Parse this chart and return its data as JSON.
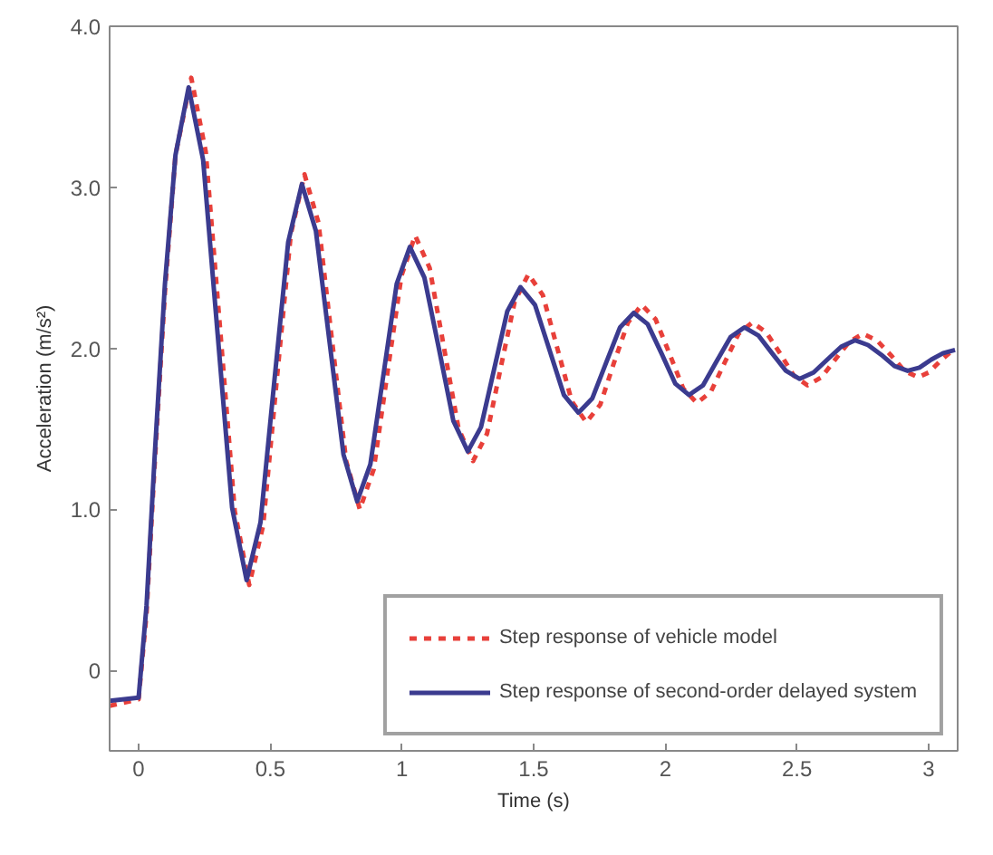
{
  "chart_data": {
    "type": "line",
    "xlabel": "Time (s)",
    "ylabel": "Acceleration (m/s²)",
    "xlim": [
      -0.11,
      3.11
    ],
    "ylim": [
      -0.5,
      4.0
    ],
    "xticks": [
      0,
      0.5,
      1,
      1.5,
      2,
      2.5,
      3
    ],
    "yticks": [
      0,
      {
        "value": 1,
        "label": "1.0"
      },
      {
        "value": 2,
        "label": "2.0"
      },
      {
        "value": 3,
        "label": "3.0"
      },
      {
        "value": 4,
        "label": "4.0"
      }
    ],
    "grid": false,
    "legend": "bottom right",
    "marker": "none",
    "series": [
      {
        "name": "Step response of vehicle model",
        "color": "#e8403a",
        "line_style": "dashed",
        "x": [
          -0.11,
          0.0,
          0.03,
          0.06,
          0.1,
          0.14,
          0.2,
          0.255,
          0.31,
          0.365,
          0.42,
          0.473,
          0.525,
          0.578,
          0.63,
          0.683,
          0.735,
          0.788,
          0.84,
          0.893,
          0.945,
          0.998,
          1.05,
          1.105,
          1.16,
          1.215,
          1.27,
          1.323,
          1.375,
          1.428,
          1.48,
          1.535,
          1.59,
          1.645,
          1.7,
          1.753,
          1.805,
          1.858,
          1.91,
          1.963,
          2.015,
          2.068,
          2.12,
          2.173,
          2.225,
          2.278,
          2.33,
          2.383,
          2.435,
          2.488,
          2.54,
          2.593,
          2.645,
          2.698,
          2.75,
          2.803,
          2.855,
          2.908,
          2.96,
          3.0,
          3.05,
          3.1
        ],
        "values": [
          -0.22,
          -0.18,
          0.35,
          1.25,
          2.35,
          3.2,
          3.68,
          3.22,
          2.11,
          0.99,
          0.53,
          0.9,
          1.81,
          2.71,
          3.08,
          2.78,
          2.04,
          1.3,
          1.0,
          1.25,
          1.85,
          2.45,
          2.7,
          2.5,
          2.0,
          1.5,
          1.3,
          1.47,
          1.88,
          2.29,
          2.46,
          2.33,
          2.0,
          1.67,
          1.54,
          1.65,
          1.91,
          2.16,
          2.27,
          2.18,
          1.97,
          1.75,
          1.66,
          1.73,
          1.91,
          2.09,
          2.16,
          2.1,
          1.97,
          1.83,
          1.77,
          1.82,
          1.93,
          2.04,
          2.09,
          2.05,
          1.96,
          1.86,
          1.82,
          1.85,
          1.93,
          2.0
        ]
      },
      {
        "name": "Step response of second-order delayed system",
        "color": "#3b3b8f",
        "line_style": "solid",
        "x": [
          -0.11,
          0.0,
          0.03,
          0.06,
          0.1,
          0.14,
          0.19,
          0.245,
          0.3,
          0.355,
          0.41,
          0.463,
          0.515,
          0.568,
          0.62,
          0.673,
          0.725,
          0.778,
          0.83,
          0.88,
          0.93,
          0.98,
          1.03,
          1.085,
          1.14,
          1.195,
          1.25,
          1.3,
          1.35,
          1.4,
          1.45,
          1.505,
          1.56,
          1.615,
          1.67,
          1.723,
          1.775,
          1.828,
          1.88,
          1.933,
          1.985,
          2.038,
          2.09,
          2.143,
          2.195,
          2.248,
          2.3,
          2.353,
          2.405,
          2.458,
          2.51,
          2.563,
          2.615,
          2.668,
          2.72,
          2.77,
          2.82,
          2.87,
          2.92,
          2.965,
          3.01,
          3.055,
          3.1
        ],
        "values": [
          -0.19,
          -0.17,
          0.4,
          1.3,
          2.4,
          3.2,
          3.62,
          3.17,
          2.09,
          1.01,
          0.56,
          0.92,
          1.79,
          2.66,
          3.02,
          2.73,
          2.04,
          1.34,
          1.05,
          1.28,
          1.84,
          2.4,
          2.63,
          2.44,
          2.0,
          1.55,
          1.36,
          1.51,
          1.87,
          2.23,
          2.38,
          2.27,
          1.99,
          1.71,
          1.6,
          1.69,
          1.91,
          2.13,
          2.22,
          2.15,
          1.97,
          1.78,
          1.71,
          1.77,
          1.92,
          2.07,
          2.13,
          2.08,
          1.97,
          1.86,
          1.81,
          1.85,
          1.93,
          2.01,
          2.05,
          2.02,
          1.96,
          1.89,
          1.86,
          1.88,
          1.93,
          1.97,
          1.99
        ]
      }
    ]
  }
}
